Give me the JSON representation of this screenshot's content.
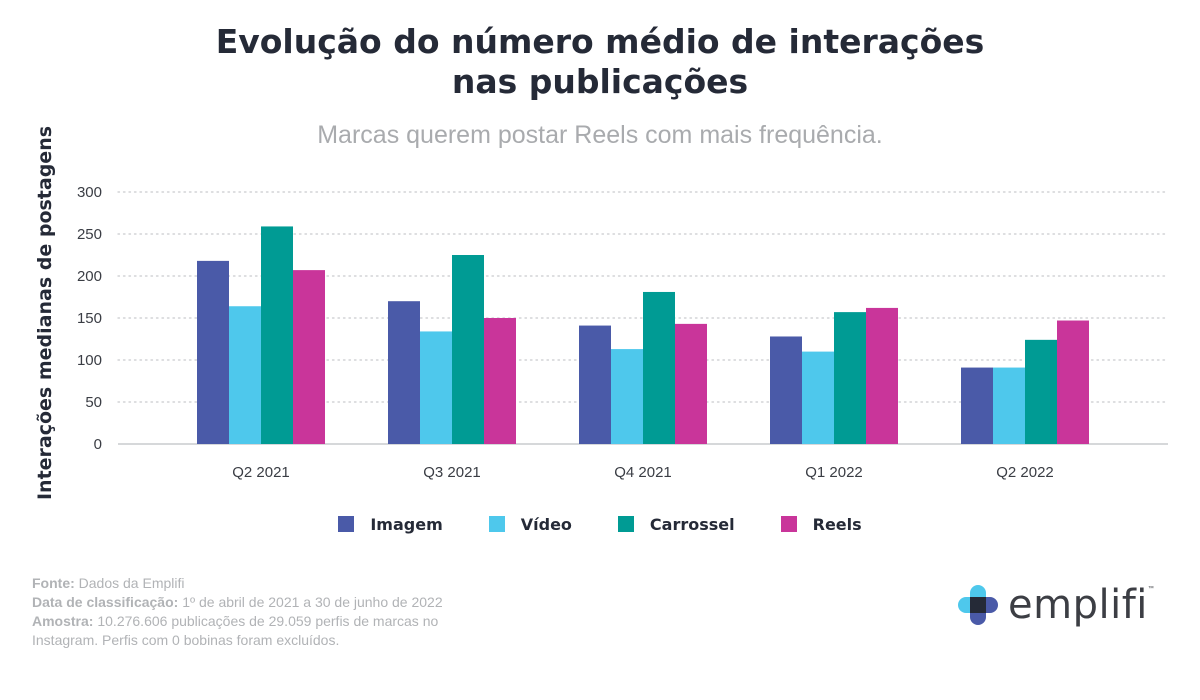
{
  "title_line1": "Evolução do número médio de interações",
  "title_line2": "nas publicações",
  "subtitle": "Marcas querem postar Reels com mais frequência.",
  "chart_data": {
    "type": "bar",
    "title": "Evolução do número médio de interações nas publicações",
    "ylabel": "Interações medianas de postagens",
    "xlabel": "",
    "ylim": [
      0,
      300
    ],
    "yticks": [
      0,
      50,
      100,
      150,
      200,
      250,
      300
    ],
    "grid": "horizontal-dotted",
    "legend_position": "bottom",
    "categories": [
      "Q2 2021",
      "Q3 2021",
      "Q4 2021",
      "Q1 2022",
      "Q2 2022"
    ],
    "series": [
      {
        "name": "Imagem",
        "color": "#4a5aa8",
        "values": [
          218,
          170,
          141,
          128,
          91
        ]
      },
      {
        "name": "Vídeo",
        "color": "#4ec8ec",
        "values": [
          164,
          134,
          113,
          110,
          91
        ]
      },
      {
        "name": "Carrossel",
        "color": "#009b94",
        "values": [
          259,
          225,
          181,
          157,
          124
        ]
      },
      {
        "name": "Reels",
        "color": "#c9359a",
        "values": [
          207,
          150,
          143,
          162,
          147
        ]
      }
    ]
  },
  "footer": {
    "source_label": "Fonte:",
    "source_text": "Dados da Emplifi",
    "date_label": "Data de classificação:",
    "date_text": "1º de abril de 2021 a 30 de junho de 2022",
    "sample_label": "Amostra:",
    "sample_text": "10.276.606 publicações de 29.059 perfis de marcas no Instagram. Perfis com 0 bobinas foram excluídos."
  },
  "logo": {
    "text": "emplifi",
    "tm": "™",
    "colors": {
      "top": "#4ec8ec",
      "bottom": "#4a5aa8",
      "left": "#4ec8ec",
      "right": "#4a5aa8",
      "center": "#252a37"
    }
  }
}
